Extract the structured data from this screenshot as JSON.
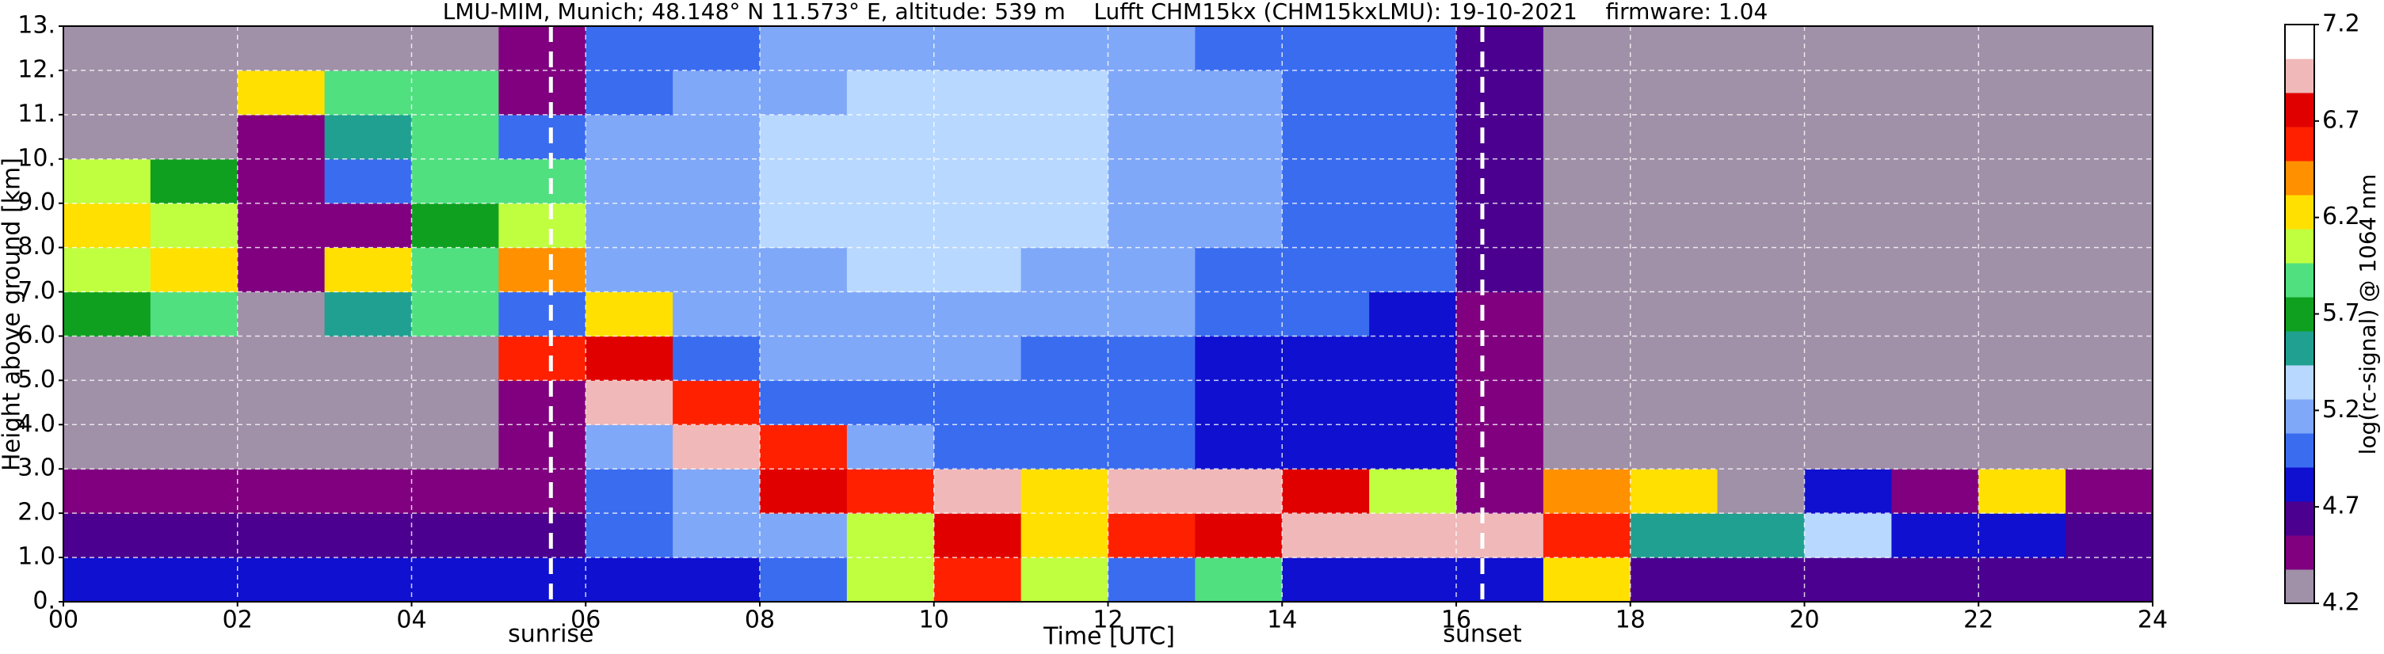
{
  "chart_data": {
    "type": "heatmap",
    "title": "LMU-MIM, Munich; 48.148° N 11.573° E, altitude: 539 m    Lufft CHM15kx (CHM15kxLMU): 19-10-2021    firmware: 1.04",
    "x_label": "Time [UTC]",
    "y_label": "Height above ground [km]",
    "colorbar_label": "log(rc-signal) @ 1064 nm",
    "x": [
      0,
      1,
      2,
      3,
      4,
      5,
      6,
      7,
      8,
      9,
      10,
      11,
      12,
      13,
      14,
      15,
      16,
      17,
      18,
      19,
      20,
      21,
      22,
      23,
      24
    ],
    "y": [
      0,
      1,
      2,
      3,
      4,
      5,
      6,
      7,
      8,
      9,
      10,
      11,
      12,
      13
    ],
    "z": [
      [
        4.8,
        4.8,
        4.9,
        4.9,
        4.8,
        4.8,
        4.8,
        4.9,
        5.0,
        6.0,
        6.5,
        6.0,
        5.0,
        5.8,
        4.8,
        4.8,
        4.9,
        6.2,
        4.7,
        4.6,
        4.7,
        4.6,
        4.6,
        4.7
      ],
      [
        4.6,
        4.6,
        4.6,
        4.6,
        4.6,
        4.6,
        5.0,
        5.1,
        5.2,
        6.0,
        6.8,
        6.3,
        6.5,
        6.8,
        7.0,
        7.0,
        7.0,
        6.6,
        5.5,
        5.6,
        5.3,
        4.9,
        4.9,
        4.7
      ],
      [
        4.4,
        4.4,
        4.4,
        4.4,
        4.4,
        4.4,
        5.0,
        5.2,
        6.8,
        6.6,
        6.9,
        6.2,
        7.0,
        7.0,
        6.8,
        6.0,
        4.5,
        6.4,
        6.2,
        4.3,
        4.8,
        4.5,
        6.2,
        4.5
      ],
      [
        4.3,
        4.3,
        4.3,
        4.3,
        4.3,
        4.4,
        5.2,
        6.9,
        6.6,
        5.2,
        5.0,
        5.0,
        5.0,
        4.9,
        4.8,
        4.8,
        4.4,
        4.2,
        4.2,
        4.2,
        4.2,
        4.2,
        4.2,
        4.2
      ],
      [
        4.3,
        4.3,
        4.3,
        4.3,
        4.3,
        4.4,
        7.0,
        6.5,
        5.0,
        5.0,
        5.0,
        5.0,
        5.0,
        4.9,
        4.9,
        4.8,
        4.4,
        4.2,
        4.2,
        4.2,
        4.2,
        4.2,
        4.2,
        4.2
      ],
      [
        4.3,
        4.3,
        4.3,
        4.3,
        4.3,
        6.5,
        6.8,
        5.0,
        5.1,
        5.1,
        5.1,
        5.0,
        5.0,
        4.9,
        4.9,
        4.9,
        4.5,
        4.2,
        4.2,
        4.2,
        4.2,
        4.2,
        4.2,
        4.2
      ],
      [
        5.7,
        5.9,
        4.3,
        5.6,
        5.9,
        5.0,
        6.3,
        5.1,
        5.1,
        5.2,
        5.2,
        5.1,
        5.1,
        5.0,
        5.0,
        4.9,
        4.5,
        4.2,
        4.2,
        4.2,
        4.2,
        4.2,
        4.2,
        4.2
      ],
      [
        6.1,
        6.2,
        4.4,
        6.3,
        5.9,
        6.4,
        5.1,
        5.2,
        5.2,
        5.3,
        5.3,
        5.2,
        5.1,
        5.0,
        5.0,
        5.0,
        4.6,
        4.2,
        4.2,
        4.2,
        4.2,
        4.2,
        4.2,
        4.2
      ],
      [
        6.2,
        6.0,
        4.4,
        4.4,
        5.7,
        6.0,
        5.1,
        5.2,
        5.3,
        5.4,
        5.4,
        5.3,
        5.2,
        5.1,
        5.0,
        5.0,
        4.6,
        4.2,
        4.2,
        4.2,
        4.2,
        4.2,
        4.2,
        4.2
      ],
      [
        6.0,
        5.7,
        4.4,
        5.0,
        5.8,
        5.9,
        5.1,
        5.2,
        5.3,
        5.4,
        5.4,
        5.3,
        5.2,
        5.1,
        5.0,
        5.0,
        4.6,
        4.2,
        4.2,
        4.2,
        4.2,
        4.2,
        4.2,
        4.2
      ],
      [
        4.3,
        4.3,
        4.5,
        5.6,
        5.9,
        5.0,
        5.1,
        5.2,
        5.3,
        5.4,
        5.4,
        5.3,
        5.2,
        5.1,
        5.0,
        5.0,
        4.6,
        4.2,
        4.2,
        4.2,
        4.2,
        4.2,
        4.2,
        4.2
      ],
      [
        4.3,
        4.3,
        6.3,
        5.9,
        5.8,
        4.5,
        5.0,
        5.1,
        5.2,
        5.3,
        5.3,
        5.3,
        5.2,
        5.1,
        5.0,
        5.0,
        4.6,
        4.2,
        4.2,
        4.2,
        4.2,
        4.2,
        4.2,
        4.2
      ],
      [
        4.3,
        4.3,
        4.3,
        4.3,
        4.3,
        4.4,
        5.0,
        5.0,
        5.1,
        5.1,
        5.1,
        5.1,
        5.1,
        5.0,
        5.0,
        5.0,
        4.6,
        4.2,
        4.2,
        4.2,
        4.2,
        4.2,
        4.2,
        4.2
      ]
    ],
    "xlim": [
      0,
      24
    ],
    "ylim": [
      0,
      13
    ],
    "zlim": [
      4.2,
      7.2
    ],
    "xticks": [
      {
        "value": 0,
        "label": "00"
      },
      {
        "value": 2,
        "label": "02"
      },
      {
        "value": 4,
        "label": "04"
      },
      {
        "value": 6,
        "label": "06"
      },
      {
        "value": 8,
        "label": "08"
      },
      {
        "value": 10,
        "label": "10"
      },
      {
        "value": 12,
        "label": "12"
      },
      {
        "value": 14,
        "label": "14"
      },
      {
        "value": 16,
        "label": "16"
      },
      {
        "value": 18,
        "label": "18"
      },
      {
        "value": 20,
        "label": "20"
      },
      {
        "value": 22,
        "label": "22"
      },
      {
        "value": 24,
        "label": "24"
      }
    ],
    "yticks": [
      {
        "value": 0,
        "label": "0."
      },
      {
        "value": 1,
        "label": "1.0"
      },
      {
        "value": 2,
        "label": "2.0"
      },
      {
        "value": 3,
        "label": "3.0"
      },
      {
        "value": 4,
        "label": "4.0"
      },
      {
        "value": 5,
        "label": "5.0"
      },
      {
        "value": 6,
        "label": "6.0"
      },
      {
        "value": 7,
        "label": "7.0"
      },
      {
        "value": 8,
        "label": "8.0"
      },
      {
        "value": 9,
        "label": "9.0"
      },
      {
        "value": 10,
        "label": "10."
      },
      {
        "value": 11,
        "label": "11."
      },
      {
        "value": 12,
        "label": "12."
      },
      {
        "value": 13,
        "label": "13."
      }
    ],
    "zticks": [
      4.2,
      4.7,
      5.2,
      5.7,
      6.2,
      6.7,
      7.2
    ],
    "colormap": [
      "#a090a8",
      "#800080",
      "#4b0090",
      "#1010d0",
      "#3a6cf0",
      "#80a8f8",
      "#b8d8ff",
      "#20a090",
      "#10a020",
      "#50e080",
      "#c0ff40",
      "#ffe000",
      "#ff9000",
      "#ff2000",
      "#e00000",
      "#f0b8b8",
      "#ffffff"
    ],
    "grid": true,
    "annotations": [
      {
        "text": "sunrise",
        "x": 5.6
      },
      {
        "text": "sunset",
        "x": 16.3
      }
    ]
  }
}
